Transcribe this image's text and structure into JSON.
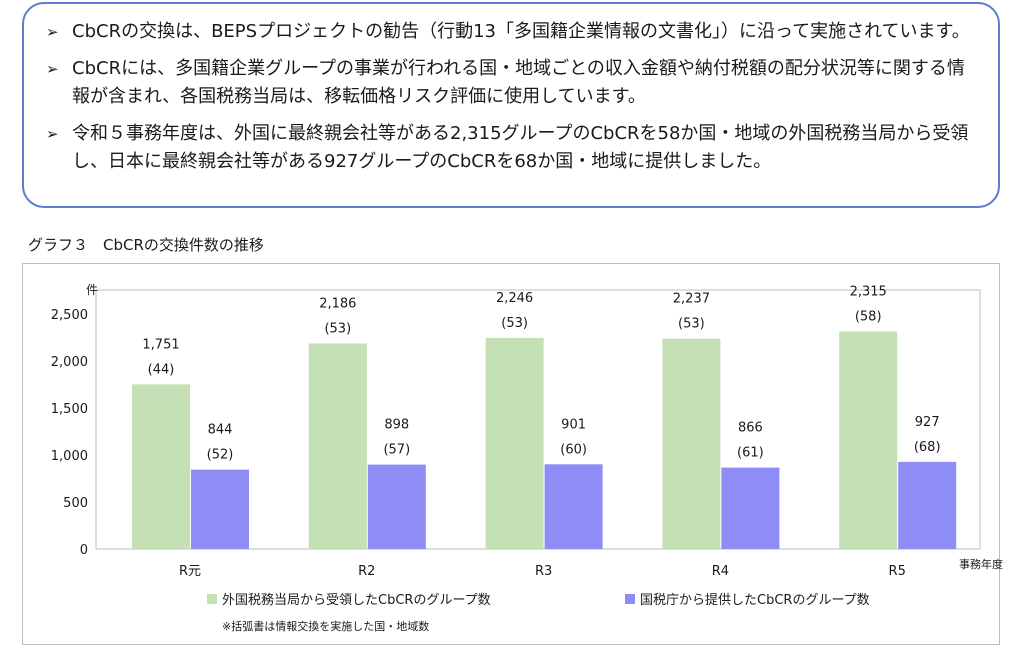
{
  "bullets": [
    {
      "arrow": "➢",
      "text": "CbCRの交換は、BEPSプロジェクトの勧告（行動13「多国籍企業情報の文書化」）に沿って実施されています。"
    },
    {
      "arrow": "➢",
      "text": "CbCRには、多国籍企業グループの事業が行われる国・地域ごとの収入金額や納付税額の配分状況等に関する情報が含まれ、各国税務当局は、移転価格リスク評価に使用しています。"
    },
    {
      "arrow": "➢",
      "text": "令和５事務年度は、外国に最終親会社等がある2,315グループのCbCRを58か国・地域の外国税務当局から受領し、日本に最終親会社等がある927グループのCbCRを68か国・地域に提供しました。"
    }
  ],
  "footnote": "※括弧書は情報交換を実施した国・地域数",
  "chart_data": {
    "type": "bar",
    "title": "グラフ３　CbCRの交換件数の推移",
    "ylabel": "件",
    "xlabel": "事務年度",
    "ylim": [
      0,
      2500
    ],
    "yticks": [
      0,
      500,
      1000,
      1500,
      2000,
      2500
    ],
    "ytick_labels": [
      "0",
      "500",
      "1,000",
      "1,500",
      "2,000",
      "2,500"
    ],
    "categories": [
      "R元",
      "R2",
      "R3",
      "R4",
      "R5"
    ],
    "grid": false,
    "legend": "bottom",
    "series": [
      {
        "name": "外国税務当局から受領したCbCRのグループ数",
        "color": "#c5e0b4",
        "values": [
          1751,
          2186,
          2246,
          2237,
          2315
        ],
        "value_labels": [
          "1,751",
          "2,186",
          "2,246",
          "2,237",
          "2,315"
        ],
        "count_labels": [
          "(44)",
          "(53)",
          "(53)",
          "(53)",
          "(58)"
        ]
      },
      {
        "name": "国税庁から提供したCbCRのグループ数",
        "color": "#8e8cf5",
        "values": [
          844,
          898,
          901,
          866,
          927
        ],
        "value_labels": [
          "844",
          "898",
          "901",
          "866",
          "927"
        ],
        "count_labels": [
          "(52)",
          "(57)",
          "(60)",
          "(61)",
          "(68)"
        ]
      }
    ]
  }
}
